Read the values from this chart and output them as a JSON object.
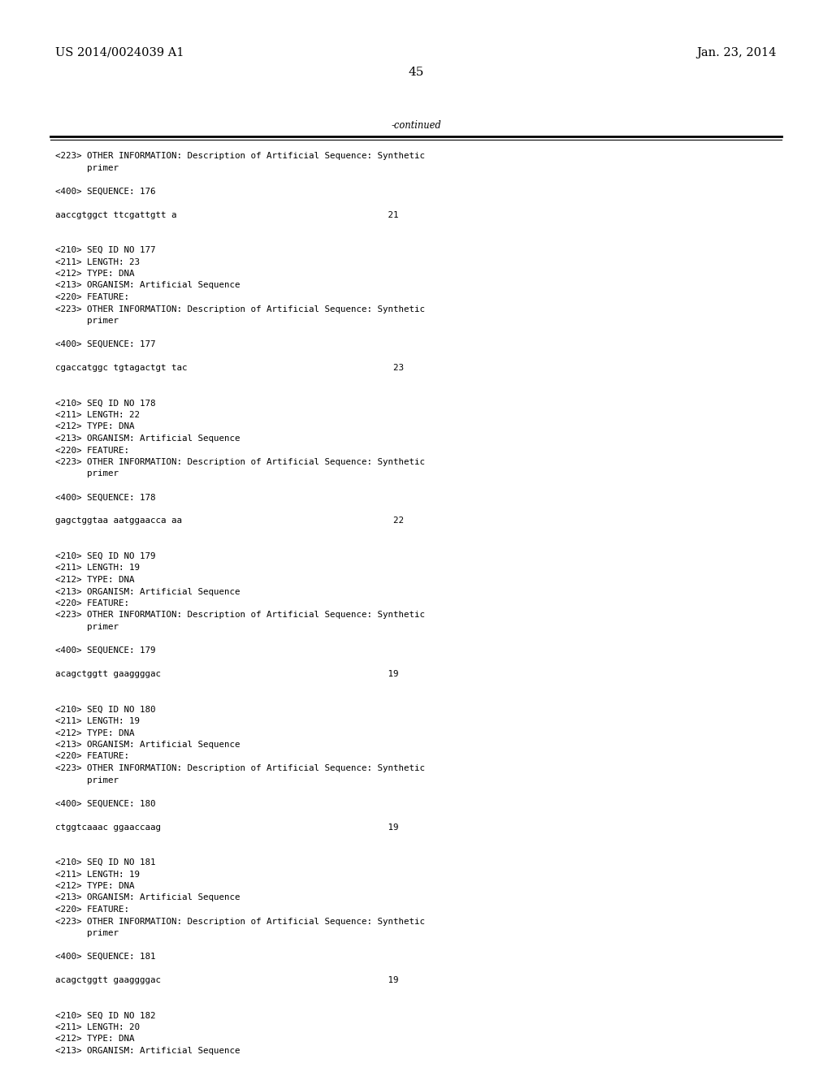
{
  "background_color": "#ffffff",
  "top_left_text": "US 2014/0024039 A1",
  "top_right_text": "Jan. 23, 2014",
  "page_number": "45",
  "continued_text": "-continued",
  "font_size_header": 10.5,
  "font_size_content": 7.8,
  "font_size_page_num": 11,
  "content_lines": [
    "<223> OTHER INFORMATION: Description of Artificial Sequence: Synthetic",
    "      primer",
    "",
    "<400> SEQUENCE: 176",
    "",
    "aaccgtggct ttcgattgtt a                                        21",
    "",
    "",
    "<210> SEQ ID NO 177",
    "<211> LENGTH: 23",
    "<212> TYPE: DNA",
    "<213> ORGANISM: Artificial Sequence",
    "<220> FEATURE:",
    "<223> OTHER INFORMATION: Description of Artificial Sequence: Synthetic",
    "      primer",
    "",
    "<400> SEQUENCE: 177",
    "",
    "cgaccatggc tgtagactgt tac                                       23",
    "",
    "",
    "<210> SEQ ID NO 178",
    "<211> LENGTH: 22",
    "<212> TYPE: DNA",
    "<213> ORGANISM: Artificial Sequence",
    "<220> FEATURE:",
    "<223> OTHER INFORMATION: Description of Artificial Sequence: Synthetic",
    "      primer",
    "",
    "<400> SEQUENCE: 178",
    "",
    "gagctggtaa aatggaacca aa                                        22",
    "",
    "",
    "<210> SEQ ID NO 179",
    "<211> LENGTH: 19",
    "<212> TYPE: DNA",
    "<213> ORGANISM: Artificial Sequence",
    "<220> FEATURE:",
    "<223> OTHER INFORMATION: Description of Artificial Sequence: Synthetic",
    "      primer",
    "",
    "<400> SEQUENCE: 179",
    "",
    "acagctggtt gaaggggac                                           19",
    "",
    "",
    "<210> SEQ ID NO 180",
    "<211> LENGTH: 19",
    "<212> TYPE: DNA",
    "<213> ORGANISM: Artificial Sequence",
    "<220> FEATURE:",
    "<223> OTHER INFORMATION: Description of Artificial Sequence: Synthetic",
    "      primer",
    "",
    "<400> SEQUENCE: 180",
    "",
    "ctggtcaaac ggaaccaag                                           19",
    "",
    "",
    "<210> SEQ ID NO 181",
    "<211> LENGTH: 19",
    "<212> TYPE: DNA",
    "<213> ORGANISM: Artificial Sequence",
    "<220> FEATURE:",
    "<223> OTHER INFORMATION: Description of Artificial Sequence: Synthetic",
    "      primer",
    "",
    "<400> SEQUENCE: 181",
    "",
    "acagctggtt gaaggggac                                           19",
    "",
    "",
    "<210> SEQ ID NO 182",
    "<211> LENGTH: 20",
    "<212> TYPE: DNA",
    "<213> ORGANISM: Artificial Sequence"
  ]
}
